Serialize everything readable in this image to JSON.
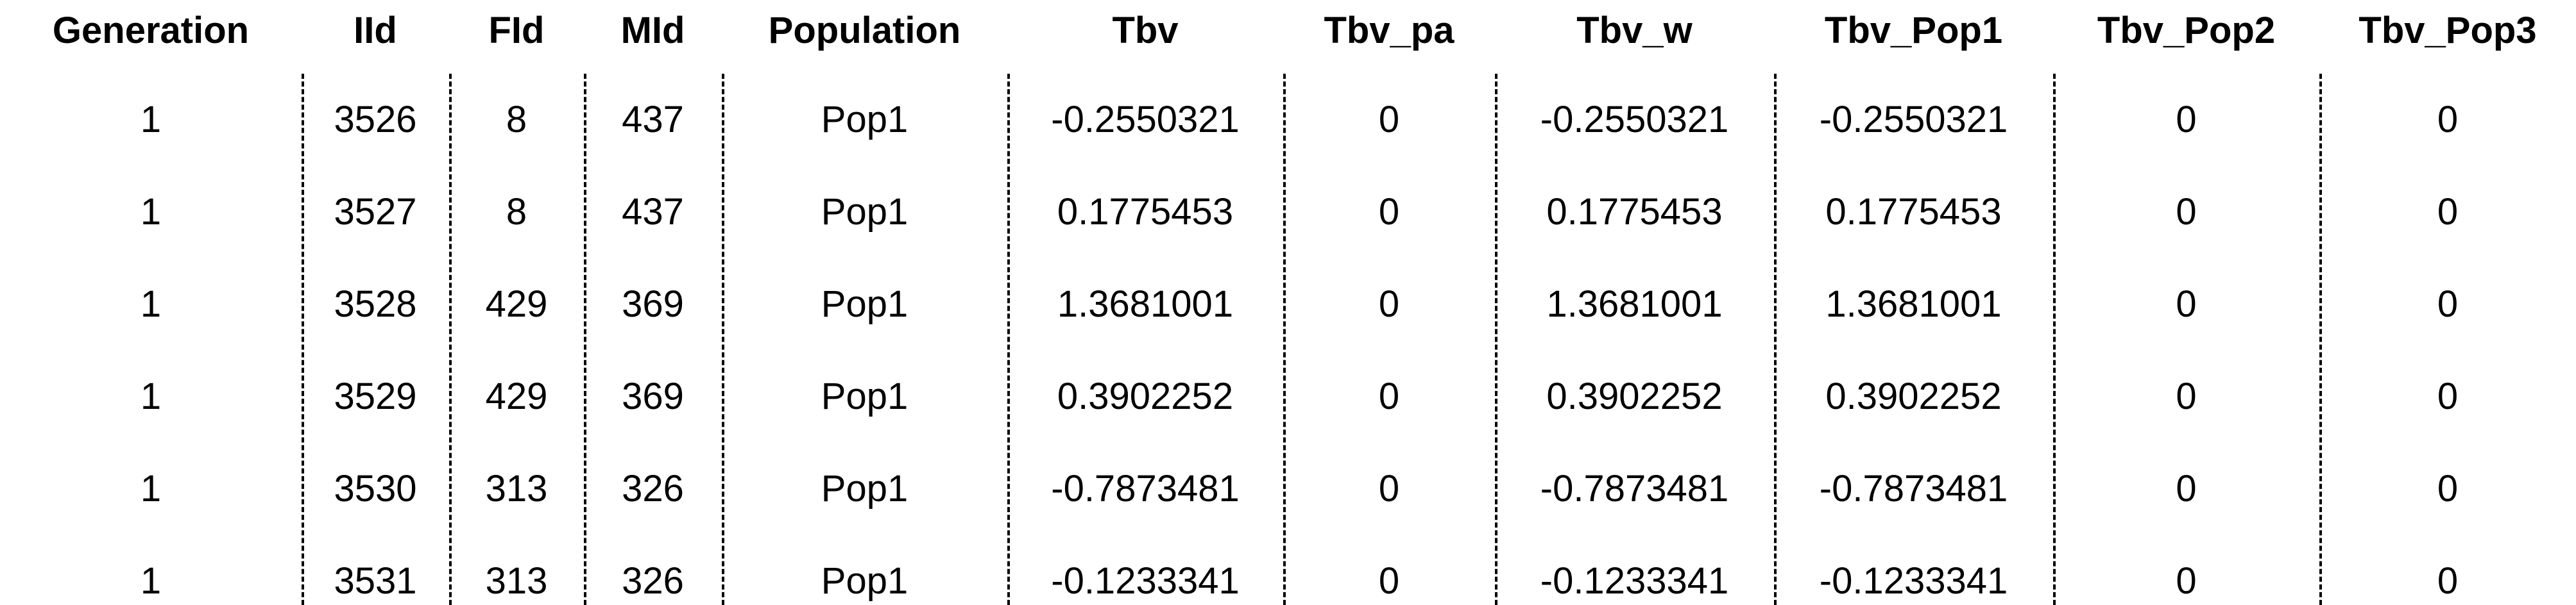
{
  "table": {
    "columns": [
      "Generation",
      "IId",
      "FId",
      "MId",
      "Population",
      "Tbv",
      "Tbv_pa",
      "Tbv_w",
      "Tbv_Pop1",
      "Tbv_Pop2",
      "Tbv_Pop3"
    ],
    "rows": [
      [
        "1",
        "3526",
        "8",
        "437",
        "Pop1",
        "-0.2550321",
        "0",
        "-0.2550321",
        "-0.2550321",
        "0",
        "0"
      ],
      [
        "1",
        "3527",
        "8",
        "437",
        "Pop1",
        "0.1775453",
        "0",
        "0.1775453",
        "0.1775453",
        "0",
        "0"
      ],
      [
        "1",
        "3528",
        "429",
        "369",
        "Pop1",
        "1.3681001",
        "0",
        "1.3681001",
        "1.3681001",
        "0",
        "0"
      ],
      [
        "1",
        "3529",
        "429",
        "369",
        "Pop1",
        "0.3902252",
        "0",
        "0.3902252",
        "0.3902252",
        "0",
        "0"
      ],
      [
        "1",
        "3530",
        "313",
        "326",
        "Pop1",
        "-0.7873481",
        "0",
        "-0.7873481",
        "-0.7873481",
        "0",
        "0"
      ],
      [
        "1",
        "3531",
        "313",
        "326",
        "Pop1",
        "-0.1233341",
        "0",
        "-0.1233341",
        "-0.1233341",
        "0",
        "0"
      ]
    ]
  }
}
